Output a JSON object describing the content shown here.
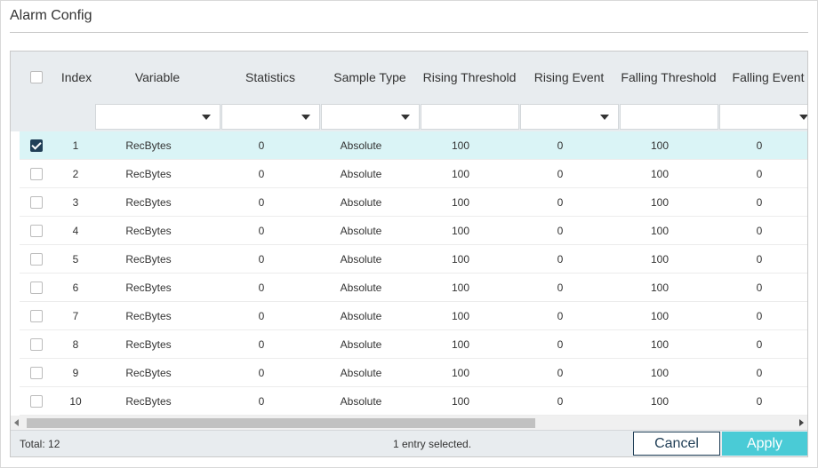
{
  "panel": {
    "title": "Alarm Config"
  },
  "table": {
    "columns": [
      "Index",
      "Variable",
      "Statistics",
      "Sample Type",
      "Rising Threshold",
      "Rising Event",
      "Falling Threshold",
      "Falling Event"
    ],
    "rows": [
      {
        "selected": true,
        "cells": [
          "1",
          "RecBytes",
          "0",
          "Absolute",
          "100",
          "0",
          "100",
          "0"
        ]
      },
      {
        "selected": false,
        "cells": [
          "2",
          "RecBytes",
          "0",
          "Absolute",
          "100",
          "0",
          "100",
          "0"
        ]
      },
      {
        "selected": false,
        "cells": [
          "3",
          "RecBytes",
          "0",
          "Absolute",
          "100",
          "0",
          "100",
          "0"
        ]
      },
      {
        "selected": false,
        "cells": [
          "4",
          "RecBytes",
          "0",
          "Absolute",
          "100",
          "0",
          "100",
          "0"
        ]
      },
      {
        "selected": false,
        "cells": [
          "5",
          "RecBytes",
          "0",
          "Absolute",
          "100",
          "0",
          "100",
          "0"
        ]
      },
      {
        "selected": false,
        "cells": [
          "6",
          "RecBytes",
          "0",
          "Absolute",
          "100",
          "0",
          "100",
          "0"
        ]
      },
      {
        "selected": false,
        "cells": [
          "7",
          "RecBytes",
          "0",
          "Absolute",
          "100",
          "0",
          "100",
          "0"
        ]
      },
      {
        "selected": false,
        "cells": [
          "8",
          "RecBytes",
          "0",
          "Absolute",
          "100",
          "0",
          "100",
          "0"
        ]
      },
      {
        "selected": false,
        "cells": [
          "9",
          "RecBytes",
          "0",
          "Absolute",
          "100",
          "0",
          "100",
          "0"
        ]
      },
      {
        "selected": false,
        "cells": [
          "10",
          "RecBytes",
          "0",
          "Absolute",
          "100",
          "0",
          "100",
          "0"
        ]
      }
    ]
  },
  "footer": {
    "total": "Total: 12",
    "selection": "1 entry selected.",
    "cancel_label": "Cancel",
    "apply_label": "Apply"
  },
  "colors": {
    "accent": "#4acbd6",
    "dark": "#213f57",
    "selected_row": "#daf4f6",
    "header_bg": "#e8ecef"
  }
}
